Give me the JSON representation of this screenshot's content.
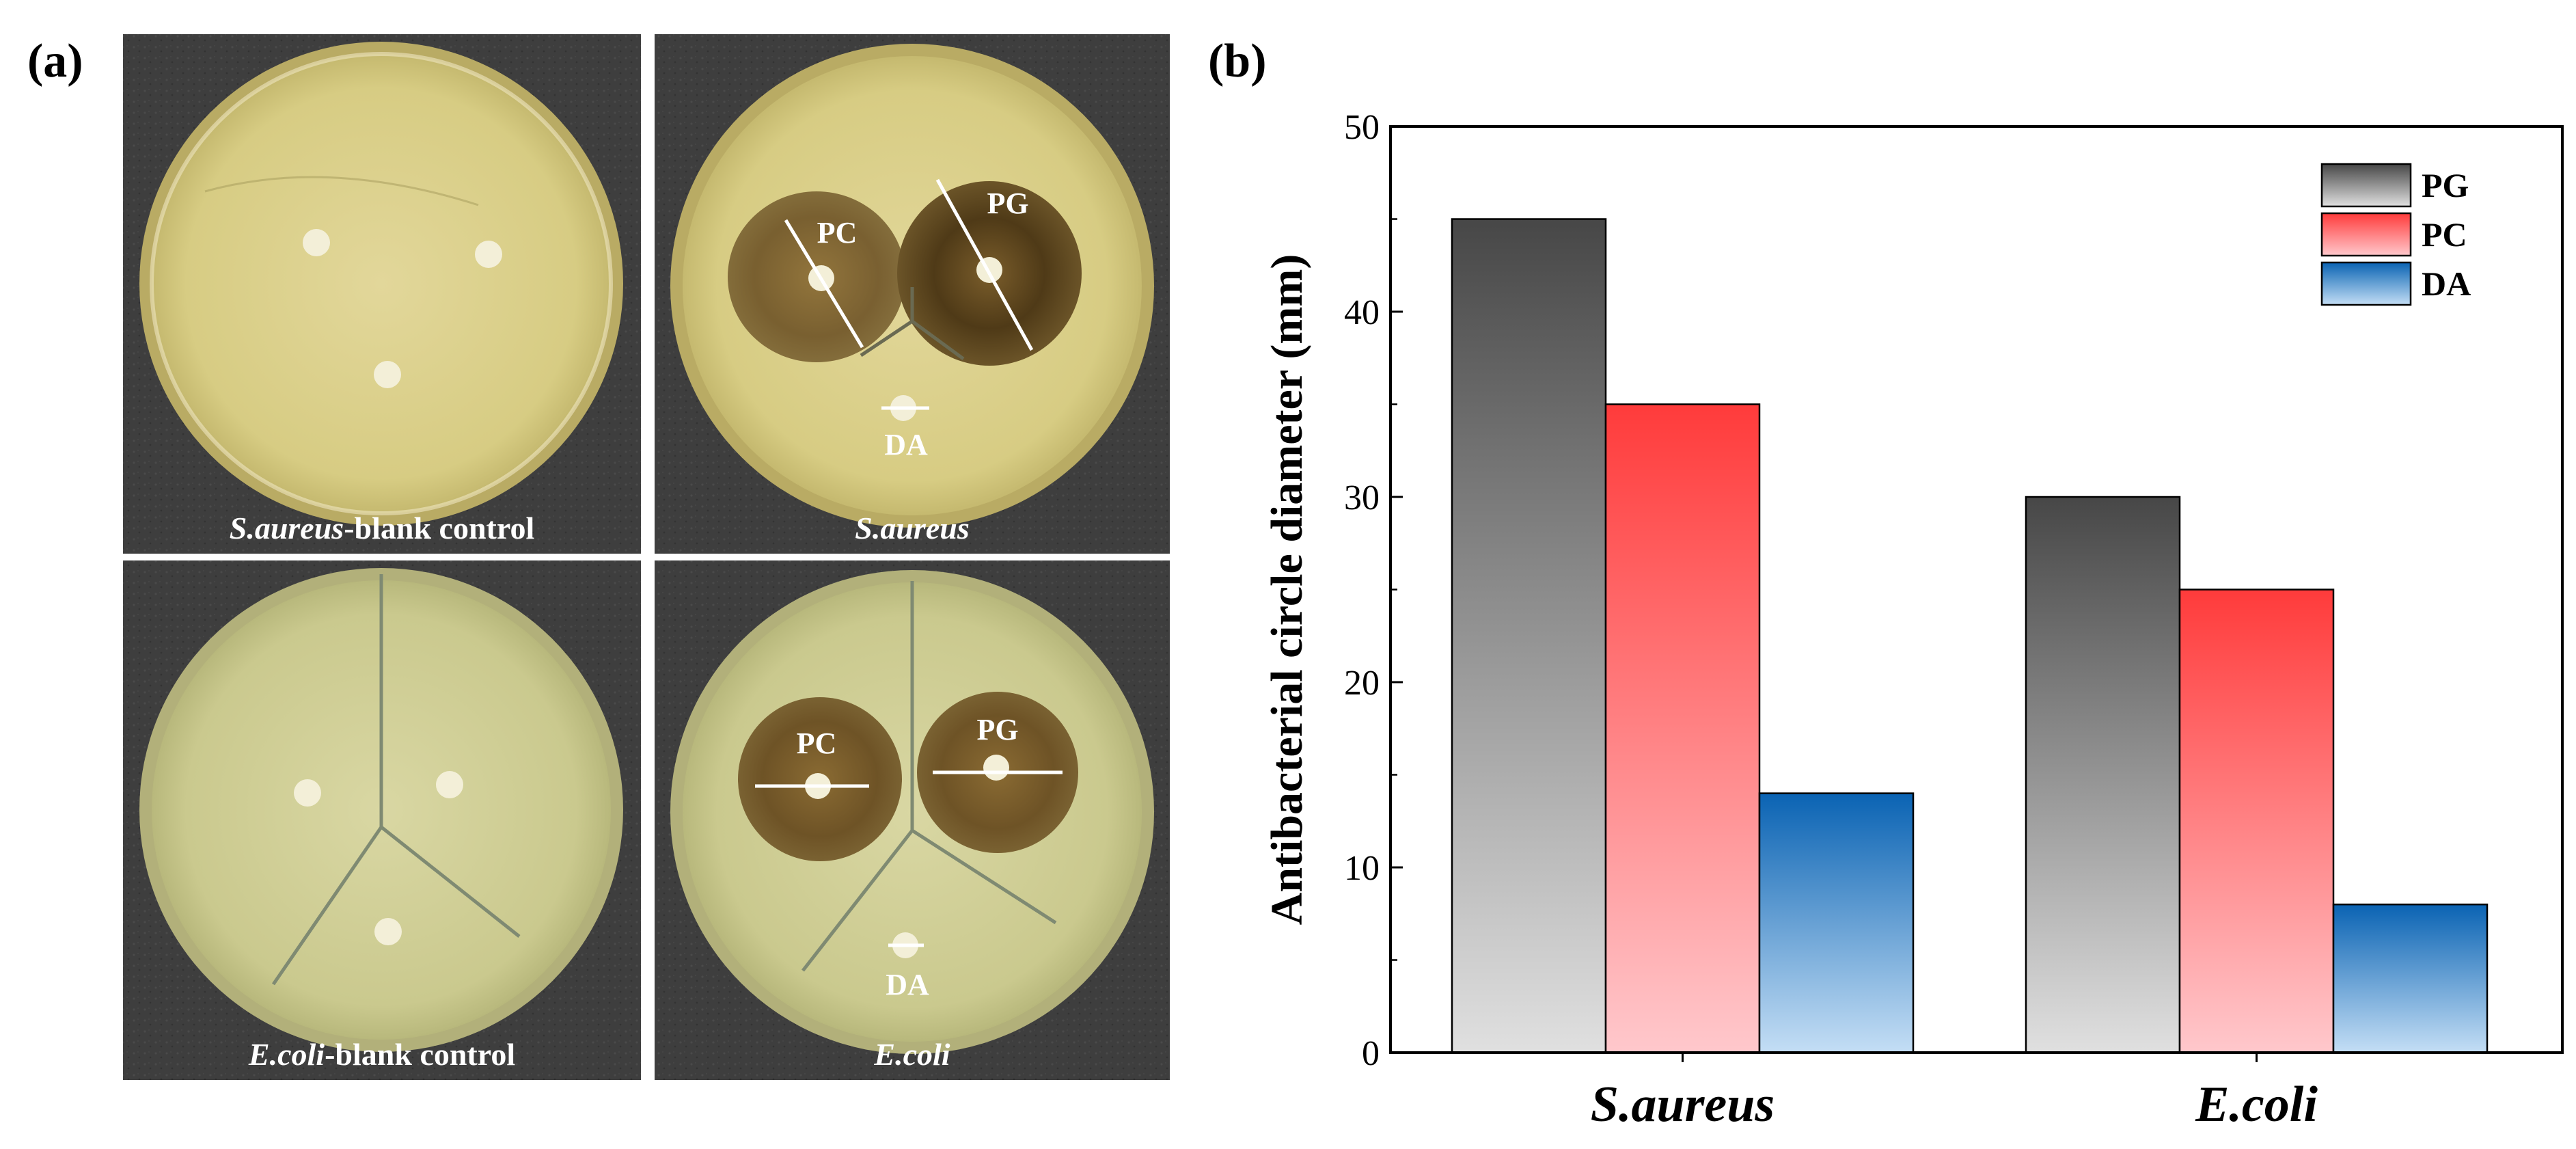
{
  "panel_a": {
    "label": "(a)",
    "photos": [
      {
        "caption_italic": "S.aureus",
        "caption_rest": "-blank control",
        "disks": []
      },
      {
        "caption_italic": "S.aureus",
        "caption_rest": "",
        "disks": [
          "PC",
          "PG",
          "DA"
        ]
      },
      {
        "caption_italic": "E.coli",
        "caption_rest": "-blank control",
        "disks": []
      },
      {
        "caption_italic": "E.coli",
        "caption_rest": "",
        "disks": [
          "PC",
          "PG",
          "DA"
        ]
      }
    ]
  },
  "panel_b": {
    "label": "(b)"
  },
  "chart_data": {
    "type": "bar",
    "categories": [
      "S.aureus",
      "E.coli"
    ],
    "series": [
      {
        "name": "PG",
        "values": [
          45,
          30
        ]
      },
      {
        "name": "PC",
        "values": [
          35,
          25
        ]
      },
      {
        "name": "DA",
        "values": [
          14,
          8
        ]
      }
    ],
    "xlabel": "",
    "ylabel": "Antibacterial circle diameter (mm)",
    "ylim": [
      0,
      50
    ],
    "yticks": [
      0,
      10,
      20,
      30,
      40,
      50
    ],
    "legend_position": "top-right",
    "grid": false,
    "colors": {
      "PG": [
        "#474747",
        "#e0e0e0"
      ],
      "PC": [
        "#ff3b3b",
        "#ffc8cc"
      ],
      "DA": [
        "#0a63b3",
        "#c4def5"
      ]
    }
  }
}
